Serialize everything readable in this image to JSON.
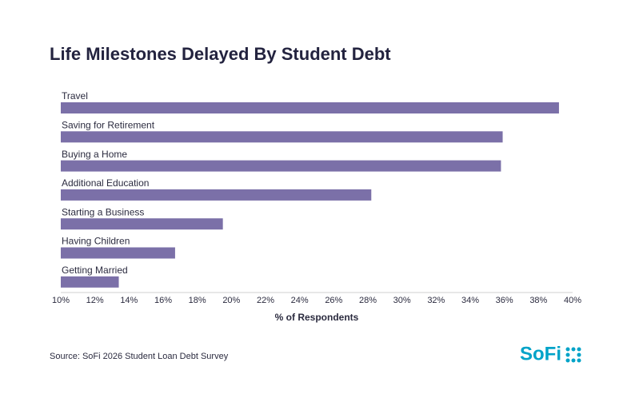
{
  "chart_data": {
    "type": "bar",
    "orientation": "horizontal",
    "title": "Life Milestones Delayed By Student Debt",
    "categories": [
      "Travel",
      "Saving for Retirement",
      "Buying a Home",
      "Additional Education",
      "Starting a Business",
      "Having Children",
      "Getting Married"
    ],
    "values": [
      39.2,
      35.9,
      35.8,
      28.2,
      19.5,
      16.7,
      13.4
    ],
    "color": "#7b70a8",
    "xlim": [
      10,
      40
    ],
    "xticks": [
      {
        "value": 10,
        "label": "10%"
      },
      {
        "value": 12,
        "label": "12%"
      },
      {
        "value": 14,
        "label": "14%"
      },
      {
        "value": 16,
        "label": "16%"
      },
      {
        "value": 18,
        "label": "18%"
      },
      {
        "value": 20,
        "label": "20%"
      },
      {
        "value": 22,
        "label": "22%"
      },
      {
        "value": 24,
        "label": "24%"
      },
      {
        "value": 26,
        "label": "26%"
      },
      {
        "value": 28,
        "label": "28%"
      },
      {
        "value": 30,
        "label": "30%"
      },
      {
        "value": 32,
        "label": "32%"
      },
      {
        "value": 34,
        "label": "34%"
      },
      {
        "value": 36,
        "label": "36%"
      },
      {
        "value": 38,
        "label": "38%"
      },
      {
        "value": 40,
        "label": "40%"
      }
    ],
    "xlabel": "% of Respondents",
    "source": "Source: SoFi 2026 Student Loan Debt Survey"
  },
  "logo": "SoFi"
}
